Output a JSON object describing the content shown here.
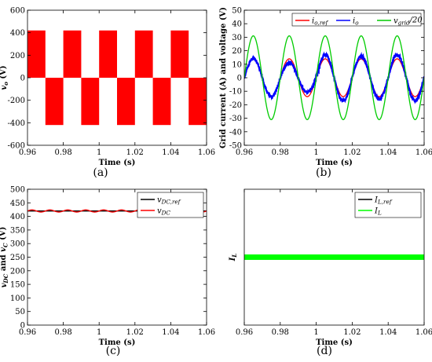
{
  "chart_data": [
    {
      "id": "a",
      "type": "line",
      "panel_label": "(a)",
      "xlabel": "Time (s)",
      "ylabel": "v_o (V)",
      "ylabel_parts": [
        [
          "v",
          "italic"
        ],
        [
          "o",
          "sub-italic"
        ],
        [
          " (V)",
          "normal"
        ]
      ],
      "xlim": [
        0.96,
        1.06
      ],
      "ylim": [
        -600,
        600
      ],
      "xticks": [
        0.96,
        0.98,
        1,
        1.02,
        1.04,
        1.06
      ],
      "xtick_labels": [
        "0.96",
        "0.98",
        "1",
        "1.02",
        "1.04",
        "1.06"
      ],
      "yticks": [
        -600,
        -400,
        -200,
        0,
        200,
        400,
        600
      ],
      "ytick_labels": [
        "-600",
        "-400",
        "-200",
        "0",
        "200",
        "400",
        "600"
      ],
      "grid": false,
      "legend": [],
      "series": [
        {
          "color": "#ff0000",
          "description": "PWM output voltage, switching between 0 and about +/-420 V; positive half-cycles from 0.96, 0.98, 1.00, 1.02, 1.04 and negative half-cycles from 0.97, 0.99, 1.01, 1.03, 1.05 (period 0.02 s)",
          "blocks": [
            {
              "x0": 0.96,
              "x1": 0.97,
              "y": 420
            },
            {
              "x0": 0.97,
              "x1": 0.98,
              "y": -420
            },
            {
              "x0": 0.98,
              "x1": 0.99,
              "y": 420
            },
            {
              "x0": 0.99,
              "x1": 1.0,
              "y": -420
            },
            {
              "x0": 1.0,
              "x1": 1.01,
              "y": 420
            },
            {
              "x0": 1.01,
              "x1": 1.02,
              "y": -420
            },
            {
              "x0": 1.02,
              "x1": 1.03,
              "y": 420
            },
            {
              "x0": 1.03,
              "x1": 1.04,
              "y": -420
            },
            {
              "x0": 1.04,
              "x1": 1.05,
              "y": 420
            },
            {
              "x0": 1.05,
              "x1": 1.06,
              "y": -420
            }
          ]
        }
      ]
    },
    {
      "id": "b",
      "type": "line",
      "panel_label": "(b)",
      "xlabel": "Time (s)",
      "ylabel": "Grid current (A) and voltage (V)",
      "xlim": [
        0.96,
        1.06
      ],
      "ylim": [
        -50,
        50
      ],
      "xticks": [
        0.96,
        0.98,
        1,
        1.02,
        1.04,
        1.06
      ],
      "xtick_labels": [
        "0.96",
        "0.98",
        "1",
        "1.02",
        "1.04",
        "1.06"
      ],
      "yticks": [
        -50,
        -40,
        -30,
        -20,
        -10,
        0,
        10,
        20,
        30,
        40,
        50
      ],
      "ytick_labels": [
        "-50",
        "-40",
        "-30",
        "-20",
        "-10",
        "0",
        "10",
        "20",
        "30",
        "40",
        "50"
      ],
      "grid": false,
      "legend_position": "top-right",
      "legend": [
        {
          "parts": [
            [
              "i",
              "italic"
            ],
            [
              "o,ref",
              "sub-italic"
            ]
          ],
          "color": "#ff0000"
        },
        {
          "parts": [
            [
              "i",
              "italic"
            ],
            [
              "o",
              "sub-italic"
            ]
          ],
          "color": "#0000ff"
        },
        {
          "parts": [
            [
              "v",
              "italic"
            ],
            [
              "grid",
              "sub-italic"
            ],
            [
              "/20",
              "italic"
            ]
          ],
          "color": "#00cc00"
        }
      ],
      "series": [
        {
          "legend_index": 0,
          "color": "#ff0000",
          "kind": "sine",
          "amplitude": 14,
          "frequency_hz": 50,
          "phase_deg": 0,
          "x": [
            0.96,
            1.06
          ]
        },
        {
          "legend_index": 1,
          "color": "#0000ff",
          "kind": "sine-noisy",
          "amplitude": 14,
          "frequency_hz": 50,
          "phase_deg": 0,
          "x": [
            0.96,
            1.06
          ],
          "amplitude_peaks": [
            14,
            11,
            17,
            16,
            17
          ],
          "dip_near": 1.0
        },
        {
          "legend_index": 2,
          "color": "#00cc00",
          "kind": "sine",
          "amplitude": 31,
          "frequency_hz": 50,
          "phase_deg": 0,
          "x": [
            0.96,
            1.06
          ]
        }
      ]
    },
    {
      "id": "c",
      "type": "line",
      "panel_label": "(c)",
      "xlabel": "Time (s)",
      "ylabel_parts": [
        [
          "v",
          "italic"
        ],
        [
          "DC",
          "sub-italic"
        ],
        [
          " and ",
          "normal"
        ],
        [
          "v",
          "italic"
        ],
        [
          "C",
          "sub-italic"
        ],
        [
          " (V)",
          "normal"
        ]
      ],
      "ylabel": "v_DC and v_C (V)",
      "xlim": [
        0.96,
        1.06
      ],
      "ylim": [
        0,
        500
      ],
      "xticks": [
        0.96,
        0.98,
        1,
        1.02,
        1.04,
        1.06
      ],
      "xtick_labels": [
        "0.96",
        "0.98",
        "1",
        "1.02",
        "1.04",
        "1.06"
      ],
      "yticks": [
        0,
        50,
        100,
        150,
        200,
        250,
        300,
        350,
        400,
        450,
        500
      ],
      "ytick_labels": [
        "0",
        "50",
        "100",
        "150",
        "200",
        "250",
        "300",
        "350",
        "400",
        "450",
        "500"
      ],
      "grid": false,
      "legend_position": "top-right",
      "legend": [
        {
          "parts": [
            [
              "v",
              "italic"
            ],
            [
              "DC,ref",
              "sub-italic"
            ]
          ],
          "color": "#000000"
        },
        {
          "parts": [
            [
              "v",
              "italic"
            ],
            [
              "DC",
              "sub-italic"
            ]
          ],
          "color": "#ff0000"
        }
      ],
      "series": [
        {
          "legend_index": 0,
          "color": "#000000",
          "kind": "constant",
          "x": [
            0.96,
            1.06
          ],
          "y": [
            420,
            420
          ]
        },
        {
          "legend_index": 1,
          "color": "#ff0000",
          "kind": "ripple",
          "mean": 420,
          "ripple": 4,
          "frequency_hz": 100,
          "x": [
            0.96,
            1.06
          ]
        }
      ]
    },
    {
      "id": "d",
      "type": "line",
      "panel_label": "(d)",
      "xlabel": "Time (s)",
      "ylabel_parts": [
        [
          "I",
          "italic"
        ],
        [
          "L",
          "sub-italic"
        ]
      ],
      "ylabel": "I_L",
      "xlim": [
        0.96,
        1.06
      ],
      "ylim": [
        0,
        50
      ],
      "xticks": [
        0.96,
        0.98,
        1,
        1.02,
        1.04,
        1.06
      ],
      "xtick_labels": [
        "0.96",
        "0.98",
        "1",
        "1.02",
        "1.04",
        "1.06"
      ],
      "yticks": [],
      "ytick_labels": [],
      "grid": false,
      "legend_position": "top-right",
      "legend": [
        {
          "parts": [
            [
              "I",
              "italic"
            ],
            [
              "L,ref",
              "sub-italic"
            ]
          ],
          "color": "#000000"
        },
        {
          "parts": [
            [
              "I",
              "italic"
            ],
            [
              "L",
              "sub-italic"
            ]
          ],
          "color": "#00ff00"
        }
      ],
      "series": [
        {
          "legend_index": 0,
          "color": "#000000",
          "kind": "constant",
          "x": [
            0.96,
            1.06
          ],
          "y": [
            25,
            25
          ]
        },
        {
          "legend_index": 1,
          "color": "#00ff00",
          "kind": "band",
          "mean": 25,
          "band": [
            24,
            26
          ],
          "x": [
            0.96,
            1.06
          ]
        }
      ]
    }
  ]
}
